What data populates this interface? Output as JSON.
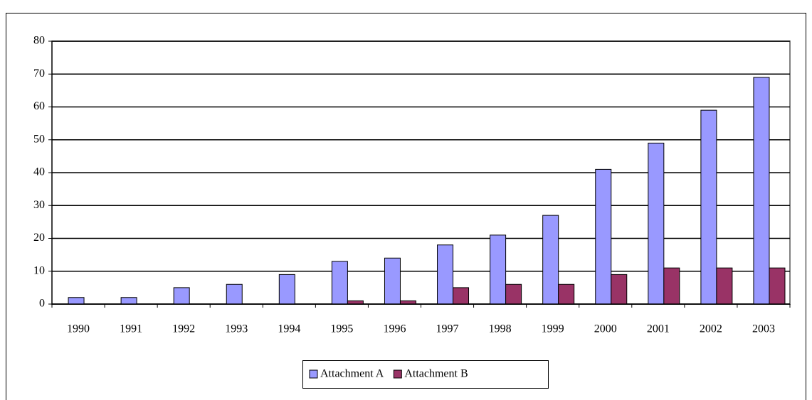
{
  "chart_data": {
    "type": "bar",
    "categories": [
      "1990",
      "1991",
      "1992",
      "1993",
      "1994",
      "1995",
      "1996",
      "1997",
      "1998",
      "1999",
      "2000",
      "2001",
      "2002",
      "2003"
    ],
    "series": [
      {
        "name": "Attachment A",
        "color": "#9999ff",
        "values": [
          2,
          2,
          5,
          6,
          9,
          13,
          14,
          18,
          21,
          27,
          41,
          49,
          59,
          69
        ]
      },
      {
        "name": "Attachment B",
        "color": "#993366",
        "values": [
          0,
          0,
          0,
          0,
          0,
          1,
          1,
          5,
          6,
          6,
          9,
          11,
          11,
          11
        ]
      }
    ],
    "ylim": [
      0,
      80
    ],
    "yticks": [
      0,
      10,
      20,
      30,
      40,
      50,
      60,
      70,
      80
    ],
    "grid": true,
    "legend": "bottom"
  }
}
